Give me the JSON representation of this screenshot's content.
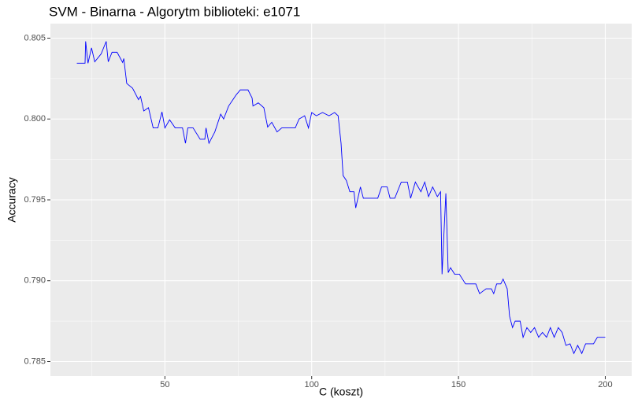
{
  "chart_data": {
    "type": "line",
    "title": "SVM - Binarna - Algorytm biblioteki: e1071",
    "x_label": "C (koszt)",
    "y_label": "Accuracy",
    "x": [
      20,
      22.8,
      23,
      23.8,
      25,
      26.1,
      28.3,
      30,
      30.7,
      32,
      33.7,
      35.6,
      36,
      37,
      39,
      41,
      41.7,
      42.8,
      44.4,
      46,
      47.6,
      49,
      50,
      51.6,
      53.5,
      56,
      57,
      57.8,
      59.6,
      62,
      63.6,
      64,
      65,
      67,
      69,
      70,
      71.7,
      74.3,
      75.7,
      78.3,
      79.7,
      80,
      81.8,
      83.7,
      85,
      86.4,
      88.2,
      89.8,
      94.4,
      95.7,
      97.6,
      98.9,
      100,
      101.6,
      103.7,
      105.9,
      107.8,
      109,
      110,
      110.7,
      111.8,
      113,
      114.4,
      115,
      116.6,
      117.6,
      122.5,
      123.8,
      125.7,
      126.7,
      128.3,
      130.5,
      132.6,
      133.7,
      135.3,
      137.2,
      138.5,
      139.8,
      141.2,
      142.8,
      143.9,
      144.4,
      145.2,
      145.7,
      146.5,
      147.3,
      148.7,
      150.3,
      152.4,
      155.9,
      157.2,
      159.4,
      161.2,
      162,
      163,
      164.4,
      165.2,
      166.6,
      167.4,
      168.4,
      169.3,
      171,
      172,
      173.3,
      174.6,
      175.9,
      177.3,
      178.6,
      180,
      181.3,
      182.6,
      184,
      185.3,
      186.6,
      188,
      189.3,
      190.6,
      192,
      193.3,
      196,
      197.3,
      200
    ],
    "series": [
      {
        "color": "#0000ff",
        "values": [
          0.80345,
          0.80345,
          0.8048,
          0.80345,
          0.8044,
          0.80354,
          0.80403,
          0.8048,
          0.80354,
          0.80413,
          0.80413,
          0.8035,
          0.80374,
          0.8022,
          0.8019,
          0.8012,
          0.8014,
          0.8005,
          0.8007,
          0.79945,
          0.79945,
          0.80044,
          0.79945,
          0.79995,
          0.79945,
          0.79945,
          0.7985,
          0.79945,
          0.79945,
          0.79875,
          0.79875,
          0.79945,
          0.7985,
          0.7992,
          0.8003,
          0.8,
          0.8008,
          0.8015,
          0.8018,
          0.8018,
          0.8013,
          0.8008,
          0.801,
          0.8007,
          0.7995,
          0.7998,
          0.7992,
          0.79945,
          0.79945,
          0.8,
          0.8002,
          0.79945,
          0.8004,
          0.8002,
          0.8004,
          0.8002,
          0.8004,
          0.8002,
          0.7985,
          0.7965,
          0.7962,
          0.7955,
          0.7955,
          0.7945,
          0.7958,
          0.7951,
          0.7951,
          0.7958,
          0.7958,
          0.7951,
          0.7951,
          0.7961,
          0.7961,
          0.7951,
          0.7961,
          0.7955,
          0.7961,
          0.7952,
          0.7958,
          0.7952,
          0.7955,
          0.7904,
          0.7935,
          0.7954,
          0.7905,
          0.7908,
          0.7904,
          0.7904,
          0.7898,
          0.7898,
          0.7892,
          0.7895,
          0.7895,
          0.7892,
          0.7898,
          0.7898,
          0.7901,
          0.7895,
          0.7878,
          0.7871,
          0.7875,
          0.7875,
          0.7865,
          0.7871,
          0.7868,
          0.7871,
          0.7865,
          0.7868,
          0.7865,
          0.7871,
          0.7865,
          0.7871,
          0.7868,
          0.786,
          0.7861,
          0.7855,
          0.786,
          0.7855,
          0.7861,
          0.7861,
          0.7865,
          0.7865
        ]
      }
    ],
    "xlim": [
      11,
      209
    ],
    "xticks": [
      50,
      100,
      150,
      200
    ],
    "ylim": [
      0.7841,
      0.8059
    ],
    "yticks": [
      {
        "value": 0.785,
        "label": "0.785"
      },
      {
        "value": 0.79,
        "label": "0.790"
      },
      {
        "value": 0.795,
        "label": "0.795"
      },
      {
        "value": 0.8,
        "label": "0.800"
      },
      {
        "value": 0.805,
        "label": "0.805"
      }
    ],
    "grid": true
  }
}
